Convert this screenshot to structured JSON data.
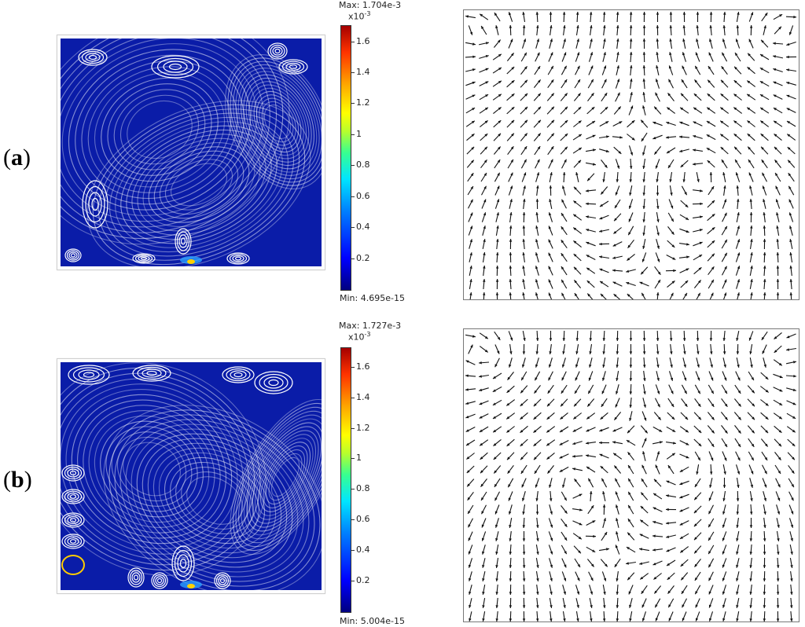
{
  "panels": [
    {
      "label": "a",
      "colorbar": {
        "max_text": "Max: 1.704e-3",
        "min_text": "Min: 4.695e-15",
        "multiplier_base": "x10",
        "multiplier_exp": "-3",
        "ticks": [
          "1.6",
          "1.4",
          "1.2",
          "1",
          "0.8",
          "0.6",
          "0.4",
          "0.2"
        ],
        "tick_values": [
          1.6,
          1.4,
          1.2,
          1.0,
          0.8,
          0.6,
          0.4,
          0.2
        ],
        "scale_max": 1.704
      }
    },
    {
      "label": "b",
      "colorbar": {
        "max_text": "Max: 1.727e-3",
        "min_text": "Min: 5.004e-15",
        "multiplier_base": "x10",
        "multiplier_exp": "-3",
        "ticks": [
          "1.6",
          "1.4",
          "1.2",
          "1",
          "0.8",
          "0.6",
          "0.4",
          "0.2"
        ],
        "tick_values": [
          1.6,
          1.4,
          1.2,
          1.0,
          0.8,
          0.6,
          0.4,
          0.2
        ],
        "scale_max": 1.727
      }
    }
  ],
  "colors": {
    "field": "#0a1ca8",
    "streamline": "#ffffff",
    "arrow": "#111111",
    "frame": "#777777"
  }
}
